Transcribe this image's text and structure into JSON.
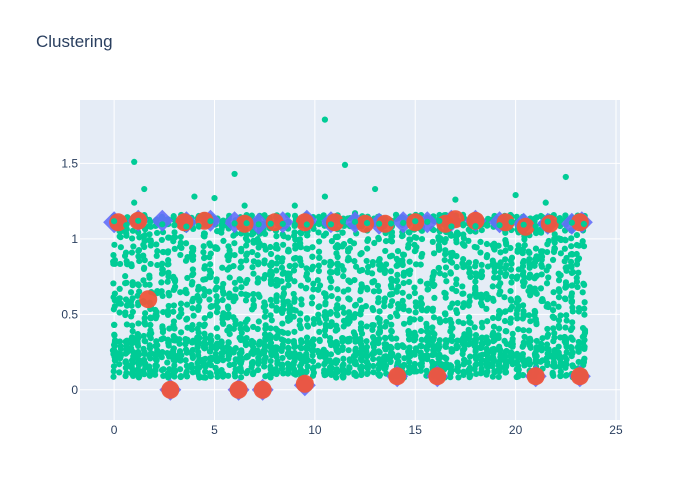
{
  "chart_data": {
    "type": "scatter",
    "title": "Clustering",
    "xlabel": "",
    "ylabel": "",
    "xlim": [
      -1.7,
      25.2
    ],
    "ylim": [
      -0.2,
      1.92
    ],
    "x_ticks": [
      0,
      5,
      10,
      15,
      20,
      25
    ],
    "y_ticks": [
      0,
      0.5,
      1,
      1.5
    ],
    "grid": true,
    "legend": "none",
    "colors": {
      "plot_bg": "#e5ecf6",
      "points": "#00cc96",
      "centroids": "#636efa",
      "highlights": "#ef553b"
    },
    "columns_x": [
      0,
      0.3,
      0.6,
      0.9,
      1.2,
      1.5,
      1.8,
      2.1,
      2.4,
      2.7,
      3.0,
      3.3,
      3.6,
      3.9,
      4.2,
      4.5,
      4.8,
      5.1,
      5.4,
      5.7,
      6.0,
      6.3,
      6.6,
      6.9,
      7.2,
      7.5,
      7.8,
      8.1,
      8.4,
      8.7,
      9.0,
      9.3,
      9.6,
      9.9,
      10.2,
      10.5,
      10.8,
      11.1,
      11.4,
      11.7,
      12.0,
      12.3,
      12.6,
      12.9,
      13.2,
      13.5,
      13.8,
      14.1,
      14.4,
      14.7,
      15.0,
      15.3,
      15.6,
      15.9,
      16.2,
      16.5,
      16.8,
      17.1,
      17.4,
      17.7,
      18.0,
      18.3,
      18.6,
      18.9,
      19.2,
      19.5,
      19.8,
      20.1,
      20.4,
      20.7,
      21.0,
      21.3,
      21.6,
      21.9,
      22.2,
      22.5,
      22.8,
      23.1,
      23.4
    ],
    "outliers": [
      {
        "x": 1.0,
        "y": 1.51
      },
      {
        "x": 1.5,
        "y": 1.33
      },
      {
        "x": 1.0,
        "y": 1.24
      },
      {
        "x": 4.0,
        "y": 1.28
      },
      {
        "x": 5.0,
        "y": 1.27
      },
      {
        "x": 6.0,
        "y": 1.43
      },
      {
        "x": 6.5,
        "y": 1.22
      },
      {
        "x": 9.0,
        "y": 1.22
      },
      {
        "x": 10.5,
        "y": 1.79
      },
      {
        "x": 10.5,
        "y": 1.28
      },
      {
        "x": 11.5,
        "y": 1.49
      },
      {
        "x": 12.0,
        "y": 1.17
      },
      {
        "x": 13.0,
        "y": 1.33
      },
      {
        "x": 17.0,
        "y": 1.26
      },
      {
        "x": 20.0,
        "y": 1.29
      },
      {
        "x": 21.5,
        "y": 1.24
      },
      {
        "x": 22.5,
        "y": 1.41
      }
    ],
    "centroids": [
      {
        "x": 0,
        "y": 1.11
      },
      {
        "x": 1.2,
        "y": 1.12
      },
      {
        "x": 2.4,
        "y": 1.12
      },
      {
        "x": 3.6,
        "y": 1.11
      },
      {
        "x": 4.8,
        "y": 1.12
      },
      {
        "x": 6.0,
        "y": 1.11
      },
      {
        "x": 7.2,
        "y": 1.1
      },
      {
        "x": 8.4,
        "y": 1.11
      },
      {
        "x": 9.6,
        "y": 1.12
      },
      {
        "x": 10.8,
        "y": 1.11
      },
      {
        "x": 12.0,
        "y": 1.11
      },
      {
        "x": 13.2,
        "y": 1.1
      },
      {
        "x": 14.4,
        "y": 1.11
      },
      {
        "x": 15.6,
        "y": 1.11
      },
      {
        "x": 16.8,
        "y": 1.12
      },
      {
        "x": 18.0,
        "y": 1.12
      },
      {
        "x": 19.2,
        "y": 1.11
      },
      {
        "x": 20.4,
        "y": 1.1
      },
      {
        "x": 21.6,
        "y": 1.1
      },
      {
        "x": 22.8,
        "y": 1.1
      },
      {
        "x": 23.3,
        "y": 1.11
      },
      {
        "x": 2.8,
        "y": 0.0
      },
      {
        "x": 6.2,
        "y": 0.0
      },
      {
        "x": 7.4,
        "y": 0.0
      },
      {
        "x": 9.5,
        "y": 0.03
      },
      {
        "x": 14.1,
        "y": 0.09
      },
      {
        "x": 16.1,
        "y": 0.09
      },
      {
        "x": 21.0,
        "y": 0.09
      },
      {
        "x": 23.2,
        "y": 0.09
      }
    ],
    "highlights": [
      {
        "x": 0.2,
        "y": 1.11
      },
      {
        "x": 1.2,
        "y": 1.12
      },
      {
        "x": 3.5,
        "y": 1.11
      },
      {
        "x": 4.5,
        "y": 1.12
      },
      {
        "x": 6.5,
        "y": 1.1
      },
      {
        "x": 8.0,
        "y": 1.11
      },
      {
        "x": 9.5,
        "y": 1.11
      },
      {
        "x": 11.0,
        "y": 1.11
      },
      {
        "x": 12.5,
        "y": 1.1
      },
      {
        "x": 13.5,
        "y": 1.1
      },
      {
        "x": 15.0,
        "y": 1.11
      },
      {
        "x": 16.5,
        "y": 1.1
      },
      {
        "x": 17.0,
        "y": 1.13
      },
      {
        "x": 18.0,
        "y": 1.12
      },
      {
        "x": 19.5,
        "y": 1.11
      },
      {
        "x": 20.5,
        "y": 1.08
      },
      {
        "x": 21.7,
        "y": 1.1
      },
      {
        "x": 23.2,
        "y": 1.11
      },
      {
        "x": 1.7,
        "y": 0.6
      },
      {
        "x": 2.8,
        "y": 0.0
      },
      {
        "x": 6.2,
        "y": 0.0
      },
      {
        "x": 7.4,
        "y": 0.0
      },
      {
        "x": 9.5,
        "y": 0.04
      },
      {
        "x": 14.1,
        "y": 0.09
      },
      {
        "x": 16.1,
        "y": 0.09
      },
      {
        "x": 21.0,
        "y": 0.09
      },
      {
        "x": 23.2,
        "y": 0.09
      }
    ]
  }
}
